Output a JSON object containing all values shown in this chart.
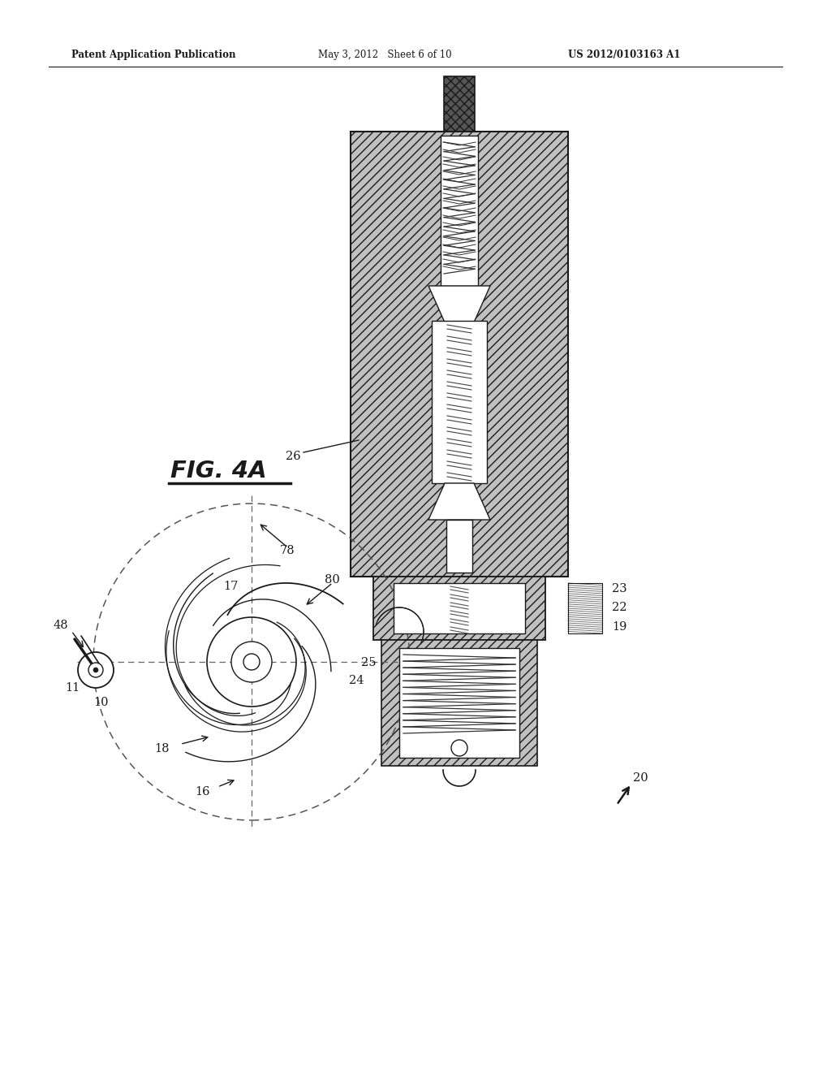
{
  "header_left": "Patent Application Publication",
  "header_mid": "May 3, 2012   Sheet 6 of 10",
  "header_right": "US 2012/0103163 A1",
  "bg_color": "#ffffff",
  "lc": "#1a1a1a",
  "fig_label": "FIG. 4A",
  "hatch_gray": "#c0c0c0",
  "hatch_light": "#d8d8d8"
}
